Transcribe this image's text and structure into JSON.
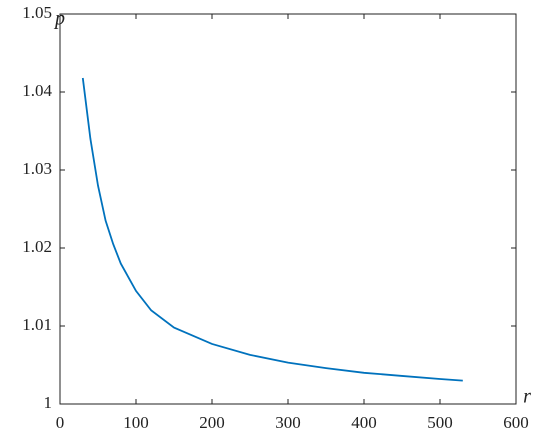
{
  "chart_data": {
    "type": "line",
    "x_label": "r",
    "y_label": "p",
    "series": [
      {
        "color": "#0072bd",
        "x": [
          30,
          40,
          50,
          60,
          70,
          80,
          100,
          120,
          150,
          200,
          250,
          300,
          350,
          400,
          450,
          500,
          530
        ],
        "values": [
          1.0418,
          1.034,
          1.028,
          1.0235,
          1.0205,
          1.018,
          1.0145,
          1.012,
          1.0098,
          1.0077,
          1.0063,
          1.0053,
          1.0046,
          1.004,
          1.0036,
          1.0032,
          1.003
        ]
      }
    ],
    "xlim": [
      0,
      600
    ],
    "xticks": [
      0,
      100,
      200,
      300,
      400,
      500,
      600
    ],
    "ylim": [
      1,
      1.05
    ],
    "yticks": [
      1,
      1.01,
      1.02,
      1.03,
      1.04,
      1.05
    ],
    "grid": false
  }
}
